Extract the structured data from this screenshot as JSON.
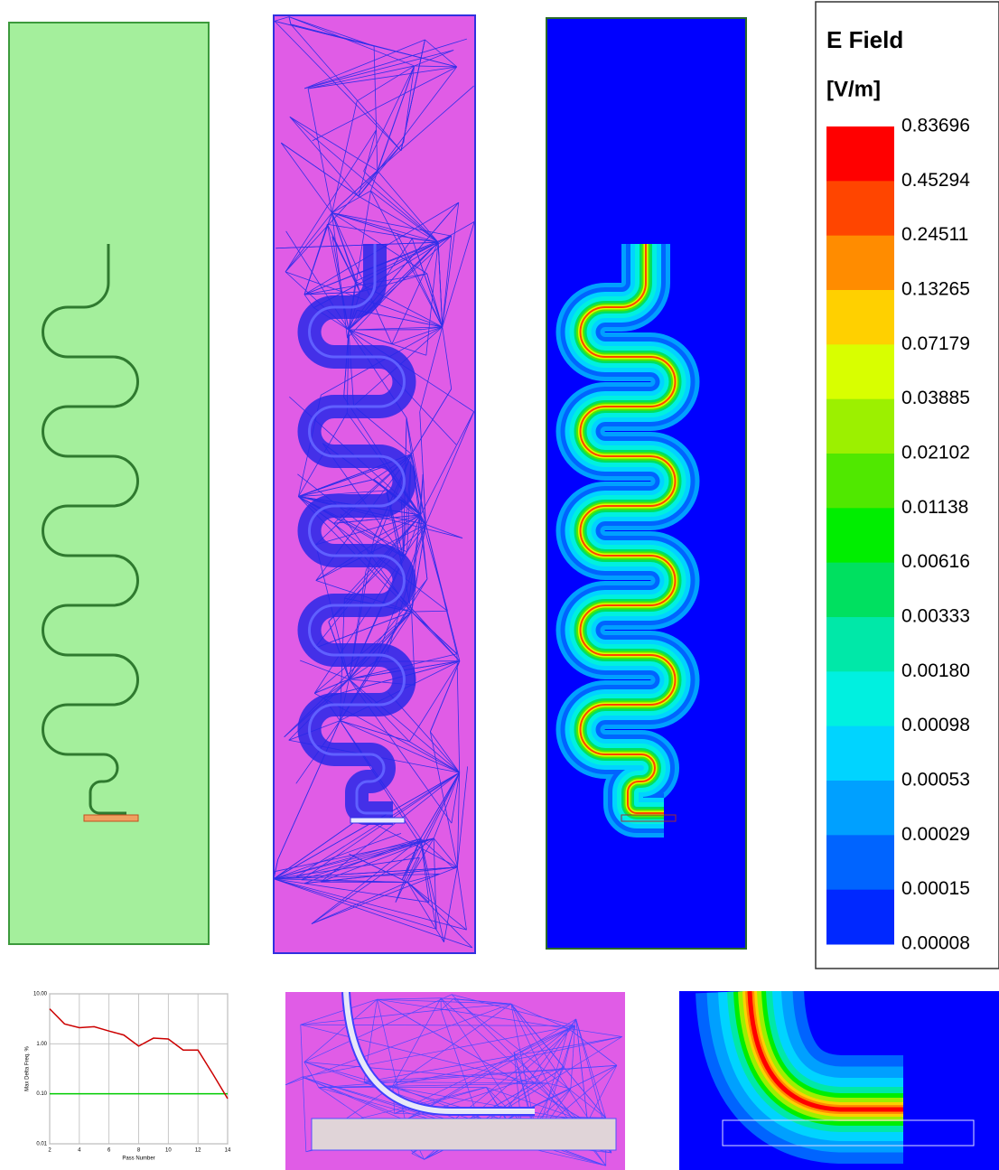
{
  "legend": {
    "title": "E Field",
    "unit": "[V/m]",
    "levels": [
      "0.83696",
      "0.45294",
      "0.24511",
      "0.13265",
      "0.07179",
      "0.03885",
      "0.02102",
      "0.01138",
      "0.00616",
      "0.00333",
      "0.00180",
      "0.00098",
      "0.00053",
      "0.00029",
      "0.00015",
      "0.00008"
    ],
    "colors": [
      "#ff0000",
      "#ff4500",
      "#ff8c00",
      "#ffd000",
      "#d8ff00",
      "#9cf000",
      "#50e800",
      "#00ee00",
      "#00e060",
      "#00e8a8",
      "#00f0e0",
      "#00d4ff",
      "#00a0ff",
      "#0064ff",
      "#0028ff"
    ]
  },
  "chart_data": {
    "type": "line",
    "xlabel": "Pass Number",
    "ylabel": "Max Delta Freq. %",
    "x": [
      2,
      3,
      4,
      5,
      6,
      7,
      8,
      9,
      10,
      11,
      12,
      13,
      14
    ],
    "series": [
      {
        "color": "#cc0000",
        "values": [
          5.0,
          2.5,
          2.1,
          2.2,
          1.8,
          1.5,
          0.9,
          1.3,
          1.25,
          0.75,
          0.75,
          0.25,
          0.08
        ]
      }
    ],
    "reference_line": {
      "value": 0.1,
      "color": "#00cc00"
    },
    "xlim": [
      2,
      14
    ],
    "xticks": [
      2,
      4,
      6,
      8,
      10,
      12,
      14
    ],
    "ylim": [
      0.01,
      10
    ],
    "log_y": true,
    "yticks": [
      {
        "value": 0.01,
        "label": "0.01"
      },
      {
        "value": 0.1,
        "label": "0.10"
      },
      {
        "value": 1,
        "label": "1.00"
      },
      {
        "value": 10,
        "label": "10.00"
      }
    ],
    "grid": true
  }
}
